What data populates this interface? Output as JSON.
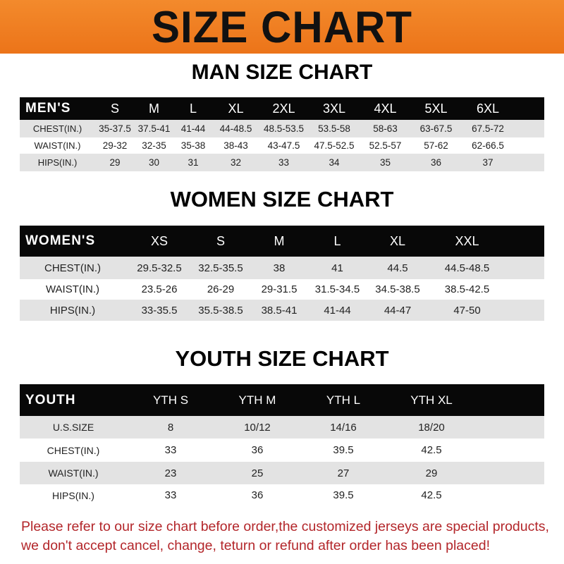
{
  "banner_title": "SIZE CHART",
  "colors": {
    "banner": "#ef7d22",
    "header_row": "#080808",
    "stripe": "#e3e3e3",
    "note": "#b3262a"
  },
  "men": {
    "title": "MAN SIZE CHART",
    "header": [
      "MEN'S",
      "S",
      "M",
      "L",
      "XL",
      "2XL",
      "3XL",
      "4XL",
      "5XL",
      "6XL"
    ],
    "rows": [
      [
        "CHEST(IN.)",
        "35-37.5",
        "37.5-41",
        "41-44",
        "44-48.5",
        "48.5-53.5",
        "53.5-58",
        "58-63",
        "63-67.5",
        "67.5-72"
      ],
      [
        "WAIST(IN.)",
        "29-32",
        "32-35",
        "35-38",
        "38-43",
        "43-47.5",
        "47.5-52.5",
        "52.5-57",
        "57-62",
        "62-66.5"
      ],
      [
        "HIPS(IN.)",
        "29",
        "30",
        "31",
        "32",
        "33",
        "34",
        "35",
        "36",
        "37"
      ]
    ]
  },
  "women": {
    "title": "WOMEN SIZE CHART",
    "header": [
      "WOMEN'S",
      "XS",
      "S",
      "M",
      "L",
      "XL",
      "XXL"
    ],
    "rows": [
      [
        "CHEST(IN.)",
        "29.5-32.5",
        "32.5-35.5",
        "38",
        "41",
        "44.5",
        "44.5-48.5"
      ],
      [
        "WAIST(IN.)",
        "23.5-26",
        "26-29",
        "29-31.5",
        "31.5-34.5",
        "34.5-38.5",
        "38.5-42.5"
      ],
      [
        "HIPS(IN.)",
        "33-35.5",
        "35.5-38.5",
        "38.5-41",
        "41-44",
        "44-47",
        "47-50"
      ]
    ]
  },
  "youth": {
    "title": "YOUTH SIZE CHART",
    "header": [
      "YOUTH",
      "YTH S",
      "YTH M",
      "YTH L",
      "YTH XL"
    ],
    "rows": [
      [
        "U.S.SIZE",
        "8",
        "10/12",
        "14/16",
        "18/20"
      ],
      [
        "CHEST(IN.)",
        "33",
        "36",
        "39.5",
        "42.5"
      ],
      [
        "WAIST(IN.)",
        "23",
        "25",
        "27",
        "29"
      ],
      [
        "HIPS(IN.)",
        "33",
        "36",
        "39.5",
        "42.5"
      ]
    ]
  },
  "note": "Please refer to our size chart before order,the customized jerseys are special products, we don't accept cancel, change, teturn or refund after order has been placed!"
}
